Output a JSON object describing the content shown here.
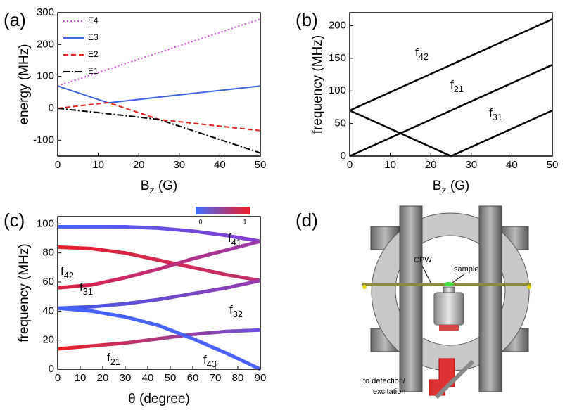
{
  "chart_data": [
    {
      "panel": "(a)",
      "type": "line",
      "y_label": "energy (MHz)",
      "x_label": {
        "base": "B",
        "sub": "z",
        "rest": " (G)"
      },
      "x": [
        0,
        12.5,
        25,
        50
      ],
      "xlim": [
        0,
        50
      ],
      "xticks": [
        0,
        10,
        20,
        30,
        40,
        50
      ],
      "ylim": [
        -150,
        300
      ],
      "yticks": [
        -100,
        0,
        100,
        200,
        300
      ],
      "legend": "upper left",
      "series": [
        {
          "name": "E4",
          "color": "#d050d8",
          "style": "dotted",
          "values": [
            70,
            122.5,
            175,
            280
          ]
        },
        {
          "name": "E3",
          "color": "#3b64e0",
          "style": "solid",
          "values": [
            70,
            17,
            35,
            70
          ]
        },
        {
          "name": "E2",
          "color": "#e8201c",
          "style": "dashed",
          "values": [
            0,
            18,
            -35,
            -70
          ]
        },
        {
          "name": "E1",
          "color": "#000000",
          "style": "dash-dot",
          "values": [
            0,
            -17,
            -35,
            -140
          ]
        }
      ]
    },
    {
      "panel": "(b)",
      "type": "line",
      "y_label": "frequency (MHz)",
      "x_label": {
        "base": "B",
        "sub": "z",
        "rest": " (G)"
      },
      "x": [
        0,
        25,
        50
      ],
      "xlim": [
        0,
        50
      ],
      "xticks": [
        0,
        10,
        20,
        30,
        40,
        50
      ],
      "ylim": [
        0,
        220
      ],
      "yticks": [
        0,
        50,
        100,
        150,
        200
      ],
      "series": [
        {
          "name": {
            "base": "f",
            "sub": "42"
          },
          "color": "#000000",
          "style": "solid",
          "values": [
            70,
            140,
            210
          ]
        },
        {
          "name": {
            "base": "f",
            "sub": "21"
          },
          "color": "#000000",
          "style": "solid",
          "values": [
            0,
            70,
            140
          ]
        },
        {
          "name": {
            "base": "f",
            "sub": "31"
          },
          "color": "#000000",
          "style": "solid",
          "values": [
            70,
            0,
            70
          ]
        }
      ]
    },
    {
      "panel": "(c)",
      "type": "line",
      "y_label": "frequency (MHz)",
      "x_label": "θ (degree)",
      "x": [
        0,
        15,
        30,
        45,
        60,
        75,
        90
      ],
      "xlim": [
        0,
        90
      ],
      "xticks": [
        0,
        10,
        20,
        30,
        40,
        50,
        60,
        70,
        80,
        90
      ],
      "ylim": [
        0,
        105
      ],
      "yticks": [
        0,
        20,
        40,
        60,
        80,
        100
      ],
      "colorbar": {
        "colors": [
          "#3f6bff",
          "#ee1c24"
        ],
        "ticks": [
          "0",
          "1"
        ]
      },
      "series": [
        {
          "name": {
            "base": "f",
            "sub": "41"
          },
          "colors": [
            "#4468ff",
            "#8a3ad0"
          ],
          "style": "solid",
          "values": [
            98,
            98,
            98,
            97,
            95,
            92,
            88
          ]
        },
        {
          "name": {
            "base": "f",
            "sub": "42"
          },
          "colors": [
            "#e8202a",
            "#c03070"
          ],
          "style": "solid",
          "values": [
            84,
            83,
            80,
            75,
            70,
            65,
            61
          ]
        },
        {
          "name": {
            "base": "f",
            "sub": "31"
          },
          "colors": [
            "#e02040",
            "#9a3ab0"
          ],
          "style": "solid",
          "values": [
            56,
            58,
            63,
            69,
            76,
            82,
            88
          ]
        },
        {
          "name": {
            "base": "f",
            "sub": "32"
          },
          "colors": [
            "#3a5af0",
            "#9a3ab0"
          ],
          "style": "solid",
          "values": [
            42,
            43,
            45,
            48,
            52,
            56,
            61
          ]
        },
        {
          "name": {
            "base": "f",
            "sub": "21"
          },
          "colors": [
            "#ee2020",
            "#6a50e0"
          ],
          "style": "solid",
          "values": [
            14,
            16,
            18,
            21,
            24,
            26,
            27
          ]
        },
        {
          "name": {
            "base": "f",
            "sub": "43"
          },
          "colors": [
            "#4262ff",
            "#4a62ff"
          ],
          "style": "solid",
          "values": [
            42,
            40,
            36,
            30,
            21,
            11,
            0
          ]
        }
      ]
    }
  ],
  "diagram": {
    "panel": "(d)",
    "labels": {
      "cpw": "CPW",
      "sample": "sample",
      "out1": "to detection/",
      "out2": "excitation"
    }
  }
}
